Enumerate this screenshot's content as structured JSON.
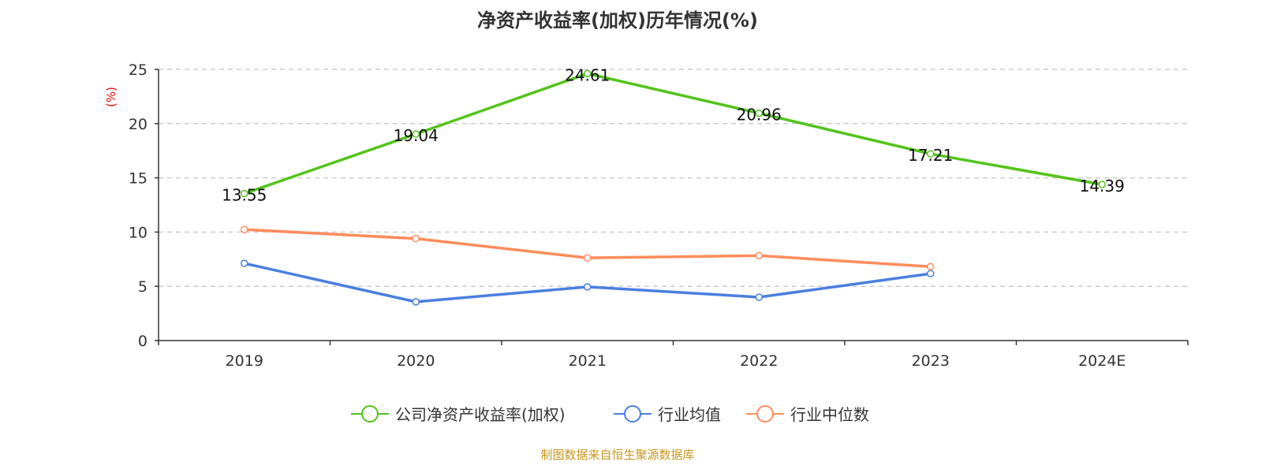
{
  "chart_data": {
    "type": "line",
    "title": "净资产收益率(加权)历年情况(%)",
    "ylabel": "(%)",
    "xlabel": "",
    "categories": [
      "2019",
      "2020",
      "2021",
      "2022",
      "2023",
      "2024E"
    ],
    "ylim": [
      0,
      25
    ],
    "yticks": [
      0,
      5,
      10,
      15,
      20,
      25
    ],
    "grid": true,
    "legend_position": "bottom",
    "series": [
      {
        "name": "公司净资产收益率(加权)",
        "color": "#52c41a",
        "values": [
          13.55,
          19.04,
          24.61,
          20.96,
          17.21,
          14.39
        ],
        "labels": [
          "13.55",
          "19.04",
          "24.61",
          "20.96",
          "17.21",
          "14.39"
        ]
      },
      {
        "name": "行业均值",
        "color": "#4a7fe0",
        "values": [
          7.12,
          3.57,
          4.95,
          4.0,
          6.17,
          null
        ]
      },
      {
        "name": "行业中位数",
        "color": "#ff8c5a",
        "values": [
          10.24,
          9.4,
          7.62,
          7.83,
          6.81,
          null
        ]
      }
    ]
  },
  "source": "制图数据来自恒生聚源数据库"
}
